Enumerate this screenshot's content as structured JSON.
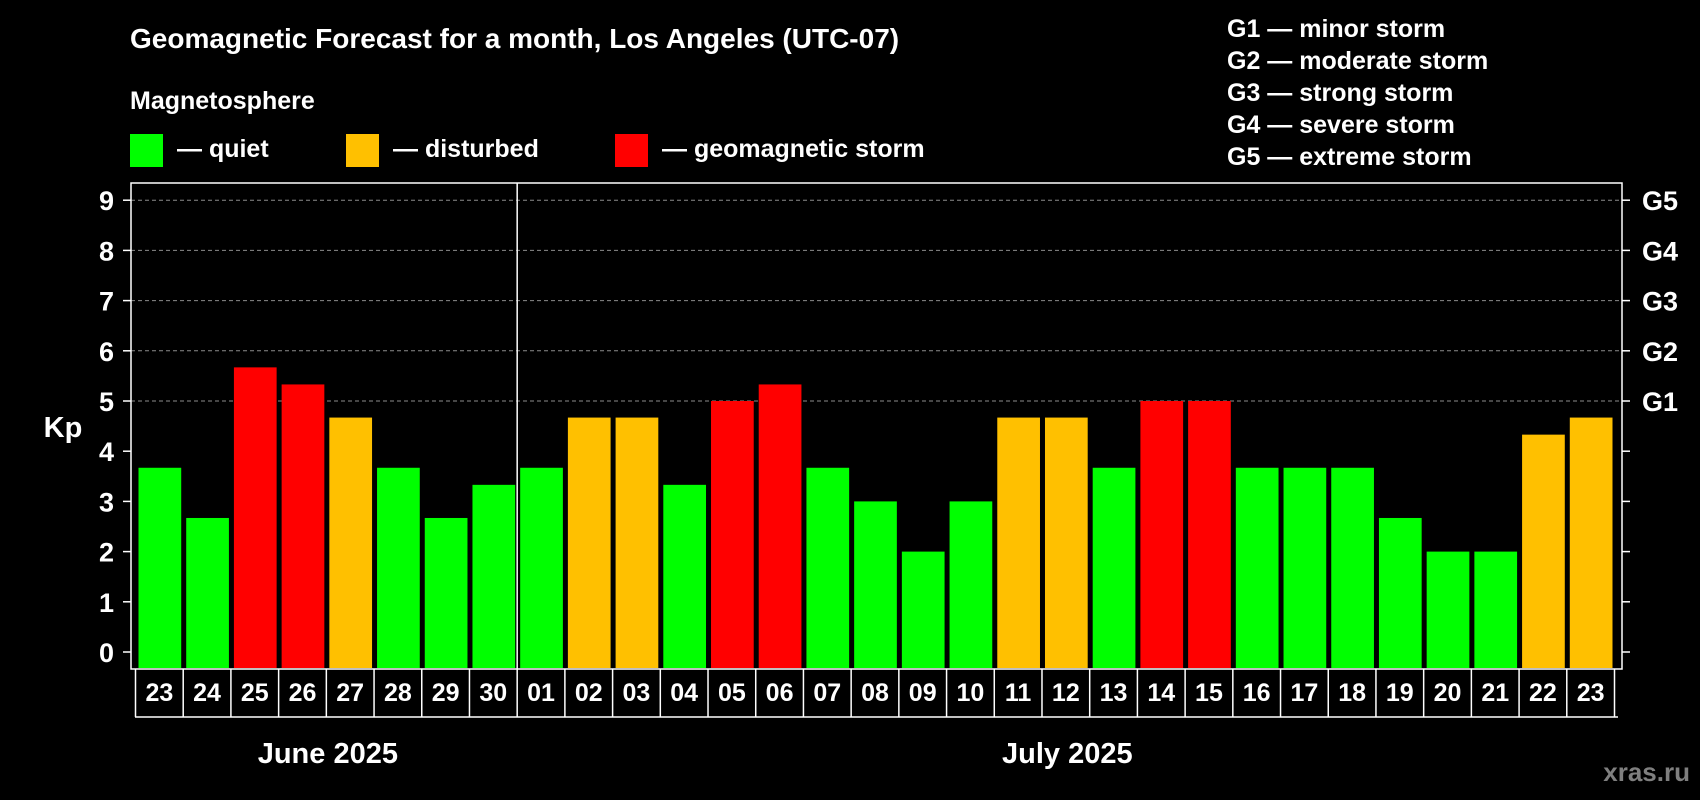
{
  "chart_data": {
    "type": "bar",
    "title": "Geomagnetic Forecast for a month, Los Angeles (UTC-07)",
    "subtitle": "Magnetosphere",
    "ylabel": "Kp",
    "ylim": [
      0,
      9
    ],
    "yticks": [
      "0",
      "1",
      "2",
      "3",
      "4",
      "5",
      "6",
      "7",
      "8",
      "9"
    ],
    "right_axis": [
      {
        "kp": 5,
        "label": "G1"
      },
      {
        "kp": 6,
        "label": "G2"
      },
      {
        "kp": 7,
        "label": "G3"
      },
      {
        "kp": 8,
        "label": "G4"
      },
      {
        "kp": 9,
        "label": "G5"
      }
    ],
    "legend": [
      {
        "label": "— quiet",
        "color": "#00ff00"
      },
      {
        "label": "— disturbed",
        "color": "#ffc000"
      },
      {
        "label": "— geomagnetic storm",
        "color": "#ff0000"
      }
    ],
    "storm_scale": [
      "G1 — minor storm",
      "G2 — moderate storm",
      "G3 — strong storm",
      "G4 — severe storm",
      "G5 — extreme storm"
    ],
    "months": [
      {
        "label": "June 2025",
        "start": 0,
        "end": 7
      },
      {
        "label": "July 2025",
        "start": 8,
        "end": 30
      }
    ],
    "categories": [
      "23",
      "24",
      "25",
      "26",
      "27",
      "28",
      "29",
      "30",
      "01",
      "02",
      "03",
      "04",
      "05",
      "06",
      "07",
      "08",
      "09",
      "10",
      "11",
      "12",
      "13",
      "14",
      "15",
      "16",
      "17",
      "18",
      "19",
      "20",
      "21",
      "22",
      "23"
    ],
    "values": [
      3.67,
      2.67,
      5.67,
      5.33,
      4.67,
      3.67,
      2.67,
      3.33,
      3.67,
      4.67,
      4.67,
      3.33,
      5.0,
      5.33,
      3.67,
      3.0,
      2.0,
      3.0,
      4.67,
      4.67,
      3.67,
      5.0,
      5.0,
      3.67,
      3.67,
      3.67,
      2.67,
      2.0,
      2.0,
      4.33,
      4.67
    ],
    "status": [
      "quiet",
      "quiet",
      "storm",
      "storm",
      "disturbed",
      "quiet",
      "quiet",
      "quiet",
      "quiet",
      "disturbed",
      "disturbed",
      "quiet",
      "storm",
      "storm",
      "quiet",
      "quiet",
      "quiet",
      "quiet",
      "disturbed",
      "disturbed",
      "quiet",
      "storm",
      "storm",
      "quiet",
      "quiet",
      "quiet",
      "quiet",
      "quiet",
      "quiet",
      "disturbed",
      "disturbed"
    ],
    "status_colors": {
      "quiet": "#00ff00",
      "disturbed": "#ffc000",
      "storm": "#ff0000"
    },
    "grid": true
  },
  "watermark": "xras.ru"
}
